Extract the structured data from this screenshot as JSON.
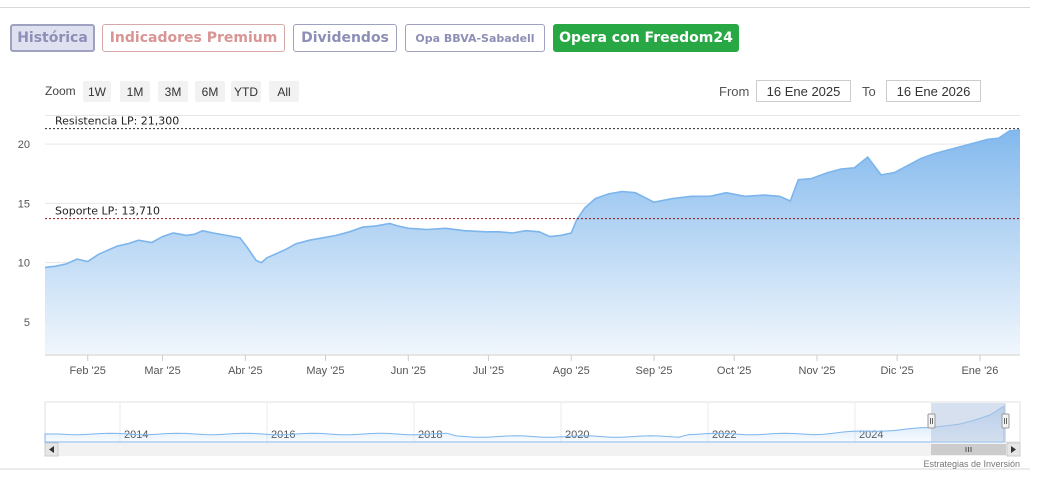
{
  "tabs": [
    {
      "label": "Histórica",
      "active": true
    },
    {
      "label": "Indicadores Premium"
    },
    {
      "label": "Dividendos"
    },
    {
      "label": "Opa BBVA-Sabadell"
    },
    {
      "label": "Opera con Freedom24",
      "color": "#27a844"
    }
  ],
  "zoom": {
    "label": "Zoom",
    "buttons": [
      "1W",
      "1M",
      "3M",
      "6M",
      "YTD",
      "All"
    ]
  },
  "range": {
    "from_label": "From",
    "from_value": "16 Ene 2025",
    "to_label": "To",
    "to_value": "16 Ene 2026"
  },
  "credit": "Estrategias de Inversión",
  "chart_data": {
    "type": "area",
    "title": "",
    "x_tick_labels": [
      "Feb '25",
      "Mar '25",
      "Abr '25",
      "May '25",
      "Jun '25",
      "Jul '25",
      "Ago '25",
      "Sep '25",
      "Oct '25",
      "Nov '25",
      "Dic '25",
      "Ene '26"
    ],
    "y_ticks": [
      5,
      10,
      15,
      20
    ],
    "ylim": [
      2.3,
      22.2
    ],
    "grid": true,
    "legend": "none",
    "colors": {
      "line": "#7cb5ec",
      "fill_top": "#7cb5ec",
      "fill_bottom": "#eef5fc",
      "annotation": "#8b1a1a"
    },
    "annotations": [
      {
        "label": "Resistencia LP: 21,300",
        "value": 21.3,
        "color": "#2d2d2d"
      },
      {
        "label": "Soporte LP: 13,710",
        "value": 13.71,
        "color": "#8b1a1a"
      }
    ],
    "series": [
      {
        "x": [
          "2025-01-16",
          "2025-01-20",
          "2025-01-24",
          "2025-01-28",
          "2025-02-01",
          "2025-02-05",
          "2025-02-08",
          "2025-02-12",
          "2025-02-16",
          "2025-02-20",
          "2025-02-25",
          "2025-03-01",
          "2025-03-05",
          "2025-03-10",
          "2025-03-13",
          "2025-03-16",
          "2025-03-20",
          "2025-03-25",
          "2025-03-30",
          "2025-04-02",
          "2025-04-05",
          "2025-04-07",
          "2025-04-09",
          "2025-04-13",
          "2025-04-16",
          "2025-04-20",
          "2025-04-25",
          "2025-04-30",
          "2025-05-05",
          "2025-05-10",
          "2025-05-15",
          "2025-05-20",
          "2025-05-25",
          "2025-05-28",
          "2025-06-01",
          "2025-06-08",
          "2025-06-15",
          "2025-06-22",
          "2025-06-30",
          "2025-07-05",
          "2025-07-10",
          "2025-07-15",
          "2025-07-20",
          "2025-07-24",
          "2025-07-28",
          "2025-08-01",
          "2025-08-03",
          "2025-08-06",
          "2025-08-10",
          "2025-08-15",
          "2025-08-20",
          "2025-08-25",
          "2025-09-01",
          "2025-09-08",
          "2025-09-15",
          "2025-09-22",
          "2025-09-28",
          "2025-10-05",
          "2025-10-12",
          "2025-10-18",
          "2025-10-22",
          "2025-10-25",
          "2025-10-30",
          "2025-11-05",
          "2025-11-10",
          "2025-11-15",
          "2025-11-20",
          "2025-11-25",
          "2025-11-30",
          "2025-12-05",
          "2025-12-10",
          "2025-12-15",
          "2025-12-20",
          "2025-12-25",
          "2025-12-30",
          "2026-01-04",
          "2026-01-08",
          "2026-01-12",
          "2026-01-16"
        ],
        "y": [
          9.6,
          9.7,
          9.9,
          10.3,
          10.1,
          10.7,
          11.0,
          11.4,
          11.6,
          11.9,
          11.7,
          12.2,
          12.5,
          12.3,
          12.4,
          12.7,
          12.5,
          12.3,
          12.1,
          11.2,
          10.2,
          10.0,
          10.4,
          10.8,
          11.1,
          11.6,
          11.9,
          12.1,
          12.3,
          12.6,
          13.0,
          13.1,
          13.3,
          13.1,
          12.9,
          12.8,
          12.9,
          12.7,
          12.6,
          12.6,
          12.5,
          12.7,
          12.6,
          12.2,
          12.3,
          12.5,
          13.6,
          14.6,
          15.4,
          15.8,
          16.0,
          15.9,
          15.1,
          15.4,
          15.6,
          15.6,
          15.9,
          15.6,
          15.7,
          15.6,
          15.2,
          17.0,
          17.1,
          17.6,
          17.9,
          18.0,
          18.9,
          17.4,
          17.6,
          18.2,
          18.8,
          19.2,
          19.5,
          19.8,
          20.1,
          20.4,
          20.5,
          21.1,
          21.2
        ]
      }
    ],
    "navigator": {
      "x_tick_labels": [
        "2014",
        "2016",
        "2018",
        "2020",
        "2022",
        "2024"
      ]
    }
  }
}
